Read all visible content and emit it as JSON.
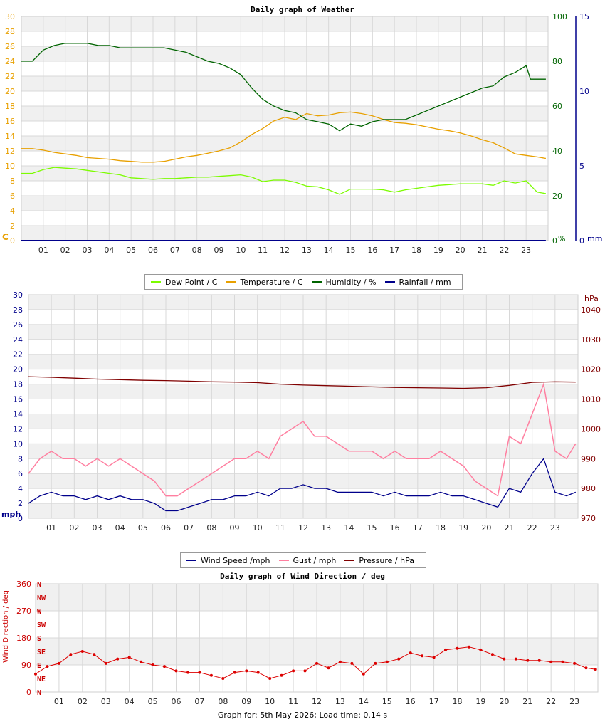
{
  "footer_text": "Graph for: 5th May 2026; Load time: 0.14 s",
  "chart_data": [
    {
      "type": "line",
      "title": "Daily graph of Weather",
      "x_ticks": [
        "01",
        "02",
        "03",
        "04",
        "05",
        "06",
        "07",
        "08",
        "09",
        "10",
        "11",
        "12",
        "13",
        "14",
        "15",
        "16",
        "17",
        "18",
        "19",
        "20",
        "21",
        "22",
        "23"
      ],
      "x_range": [
        0,
        24
      ],
      "axes": {
        "left": {
          "unit": "C",
          "color": "#e8a000",
          "range": [
            0,
            30
          ],
          "ticks": [
            0,
            2,
            4,
            6,
            8,
            10,
            12,
            14,
            16,
            18,
            20,
            22,
            24,
            26,
            28,
            30
          ]
        },
        "right1": {
          "unit": "%",
          "color": "#006400",
          "range": [
            0,
            100
          ],
          "ticks": [
            0,
            20,
            40,
            60,
            80,
            100
          ]
        },
        "right2": {
          "unit": "mm",
          "color": "#00008b",
          "range": [
            0,
            15
          ],
          "ticks": [
            0,
            5,
            10,
            15
          ]
        }
      },
      "legend": [
        {
          "name": "Dew Point / C",
          "color": "#7cfc00"
        },
        {
          "name": "Temperature / C",
          "color": "#e8a000"
        },
        {
          "name": "Humidity / %",
          "color": "#006400"
        },
        {
          "name": "Rainfall / mm",
          "color": "#00008b"
        }
      ],
      "series": [
        {
          "name": "Dew Point / C",
          "axis": "left",
          "color": "#7cfc00",
          "x": [
            0,
            0.5,
            1,
            1.5,
            2,
            2.5,
            3,
            3.5,
            4,
            4.5,
            5,
            5.5,
            6,
            6.5,
            7,
            7.5,
            8,
            8.5,
            9,
            9.5,
            10,
            10.5,
            11,
            11.5,
            12,
            12.5,
            13,
            13.5,
            14,
            14.5,
            15,
            15.5,
            16,
            16.5,
            17,
            17.5,
            18,
            18.5,
            19,
            19.5,
            20,
            20.5,
            21,
            21.5,
            22,
            22.5,
            23,
            23.5,
            23.9
          ],
          "values": [
            9.0,
            9.0,
            9.5,
            9.8,
            9.7,
            9.6,
            9.4,
            9.2,
            9.0,
            8.8,
            8.4,
            8.3,
            8.2,
            8.3,
            8.3,
            8.4,
            8.5,
            8.5,
            8.6,
            8.7,
            8.8,
            8.5,
            7.9,
            8.1,
            8.1,
            7.8,
            7.3,
            7.2,
            6.8,
            6.2,
            6.9,
            6.9,
            6.9,
            6.8,
            6.5,
            6.8,
            7.0,
            7.2,
            7.4,
            7.5,
            7.6,
            7.6,
            7.6,
            7.4,
            8.0,
            7.7,
            8.0,
            6.5,
            6.3
          ]
        },
        {
          "name": "Temperature / C",
          "axis": "left",
          "color": "#e8a000",
          "x": [
            0,
            0.5,
            1,
            1.5,
            2,
            2.5,
            3,
            3.5,
            4,
            4.5,
            5,
            5.5,
            6,
            6.5,
            7,
            7.5,
            8,
            8.5,
            9,
            9.5,
            10,
            10.5,
            11,
            11.5,
            12,
            12.5,
            13,
            13.5,
            14,
            14.5,
            15,
            15.5,
            16,
            16.5,
            17,
            17.5,
            18,
            18.5,
            19,
            19.5,
            20,
            20.5,
            21,
            21.5,
            22,
            22.5,
            23,
            23.5,
            23.9
          ],
          "values": [
            12.3,
            12.3,
            12.1,
            11.8,
            11.6,
            11.4,
            11.1,
            11.0,
            10.9,
            10.7,
            10.6,
            10.5,
            10.5,
            10.6,
            10.9,
            11.2,
            11.4,
            11.7,
            12.0,
            12.4,
            13.2,
            14.2,
            15.0,
            16.0,
            16.5,
            16.2,
            17.0,
            16.7,
            16.8,
            17.1,
            17.2,
            17.0,
            16.7,
            16.2,
            15.8,
            15.7,
            15.5,
            15.2,
            14.9,
            14.7,
            14.4,
            14.0,
            13.5,
            13.1,
            12.4,
            11.6,
            11.4,
            11.2,
            11.0
          ]
        },
        {
          "name": "Humidity / %",
          "axis": "right1",
          "color": "#006400",
          "x": [
            0,
            0.5,
            1,
            1.5,
            2,
            2.5,
            3,
            3.5,
            4,
            4.5,
            5,
            5.5,
            6,
            6.5,
            7,
            7.5,
            8,
            8.5,
            9,
            9.5,
            10,
            10.5,
            11,
            11.5,
            12,
            12.5,
            13,
            13.5,
            14,
            14.5,
            15,
            15.5,
            16,
            16.5,
            17,
            17.5,
            18,
            18.5,
            19,
            19.5,
            20,
            20.5,
            21,
            21.5,
            22,
            22.5,
            23,
            23.2,
            23.5,
            23.9
          ],
          "values": [
            80,
            80,
            85,
            87,
            88,
            88,
            88,
            87,
            87,
            86,
            86,
            86,
            86,
            86,
            85,
            84,
            82,
            80,
            79,
            77,
            74,
            68,
            63,
            60,
            58,
            57,
            54,
            53,
            52,
            49,
            52,
            51,
            53,
            54,
            54,
            54,
            56,
            58,
            60,
            62,
            64,
            66,
            68,
            69,
            73,
            75,
            78,
            72,
            72,
            72
          ]
        },
        {
          "name": "Rainfall / mm",
          "axis": "right2",
          "color": "#00008b",
          "x": [
            0,
            23.9
          ],
          "values": [
            0,
            0
          ]
        }
      ]
    },
    {
      "type": "line",
      "title": "",
      "x_ticks": [
        "01",
        "02",
        "03",
        "04",
        "05",
        "06",
        "07",
        "08",
        "09",
        "10",
        "11",
        "12",
        "13",
        "14",
        "15",
        "16",
        "17",
        "18",
        "19",
        "20",
        "21",
        "22",
        "23"
      ],
      "x_range": [
        0,
        24
      ],
      "axes": {
        "left": {
          "unit": "mph",
          "color": "#00008b",
          "range": [
            0,
            30
          ],
          "ticks": [
            0,
            2,
            4,
            6,
            8,
            10,
            12,
            14,
            16,
            18,
            20,
            22,
            24,
            26,
            28,
            30
          ]
        },
        "right": {
          "unit": "hPa",
          "color": "#800000",
          "range": [
            970,
            1045
          ],
          "ticks": [
            970,
            980,
            990,
            1000,
            1010,
            1020,
            1030,
            1040
          ]
        }
      },
      "legend": [
        {
          "name": "Wind Speed /mph",
          "color": "#00008b"
        },
        {
          "name": "Gust / mph",
          "color": "#ff7fa0"
        },
        {
          "name": "Pressure / hPa",
          "color": "#800000"
        }
      ],
      "series": [
        {
          "name": "Wind Speed /mph",
          "axis": "left",
          "color": "#00008b",
          "x": [
            0,
            0.5,
            1,
            1.5,
            2,
            2.5,
            3,
            3.5,
            4,
            4.5,
            5,
            5.5,
            6,
            6.5,
            7,
            7.5,
            8,
            8.5,
            9,
            9.5,
            10,
            10.5,
            11,
            11.5,
            12,
            12.5,
            13,
            13.5,
            14,
            14.5,
            15,
            15.5,
            16,
            16.5,
            17,
            17.5,
            18,
            18.5,
            19,
            19.5,
            20,
            20.5,
            21,
            21.5,
            22,
            22.5,
            23,
            23.5,
            23.9
          ],
          "values": [
            2.0,
            3.0,
            3.5,
            3.0,
            3.0,
            2.5,
            3.0,
            2.5,
            3.0,
            2.5,
            2.5,
            2.0,
            1.0,
            1.0,
            1.5,
            2.0,
            2.5,
            2.5,
            3.0,
            3.0,
            3.5,
            3.0,
            4.0,
            4.0,
            4.5,
            4.0,
            4.0,
            3.5,
            3.5,
            3.5,
            3.5,
            3.0,
            3.5,
            3.0,
            3.0,
            3.0,
            3.5,
            3.0,
            3.0,
            2.5,
            2.0,
            1.5,
            4.0,
            3.5,
            6.0,
            8.0,
            3.5,
            3.0,
            3.5
          ]
        },
        {
          "name": "Gust / mph",
          "axis": "left",
          "color": "#ff7fa0",
          "x": [
            0,
            0.5,
            1,
            1.5,
            2,
            2.5,
            3,
            3.5,
            4,
            4.5,
            5,
            5.5,
            6,
            6.5,
            7,
            7.5,
            8,
            8.5,
            9,
            9.5,
            10,
            10.5,
            11,
            11.5,
            12,
            12.5,
            13,
            13.5,
            14,
            14.5,
            15,
            15.5,
            16,
            16.5,
            17,
            17.5,
            18,
            18.5,
            19,
            19.5,
            20,
            20.5,
            21,
            21.5,
            22,
            22.5,
            23,
            23.5,
            23.9
          ],
          "values": [
            6,
            8,
            9,
            8,
            8,
            7,
            8,
            7,
            8,
            7,
            6,
            5,
            3,
            3,
            4,
            5,
            6,
            7,
            8,
            8,
            9,
            8,
            11,
            12,
            13,
            11,
            11,
            10,
            9,
            9,
            9,
            8,
            9,
            8,
            8,
            8,
            9,
            8,
            7,
            5,
            4,
            3,
            11,
            10,
            14,
            18,
            9,
            8,
            10
          ]
        },
        {
          "name": "Pressure / hPa",
          "axis": "right",
          "color": "#800000",
          "x": [
            0,
            1,
            2,
            3,
            4,
            5,
            6,
            7,
            8,
            9,
            10,
            11,
            12,
            13,
            14,
            15,
            16,
            17,
            18,
            19,
            20,
            21,
            22,
            23,
            23.9
          ],
          "values": [
            1017.5,
            1017.3,
            1017.0,
            1016.7,
            1016.5,
            1016.3,
            1016.2,
            1016.0,
            1015.8,
            1015.7,
            1015.5,
            1015.0,
            1014.7,
            1014.5,
            1014.3,
            1014.1,
            1013.9,
            1013.8,
            1013.7,
            1013.6,
            1013.8,
            1014.6,
            1015.6,
            1015.8,
            1015.7
          ]
        }
      ]
    },
    {
      "type": "scatter",
      "title": "Daily graph of Wind Direction / deg",
      "x_ticks": [
        "01",
        "02",
        "03",
        "04",
        "05",
        "06",
        "07",
        "08",
        "09",
        "10",
        "11",
        "12",
        "13",
        "14",
        "15",
        "16",
        "17",
        "18",
        "19",
        "20",
        "21",
        "22",
        "23"
      ],
      "x_range": [
        0,
        24
      ],
      "axes": {
        "left": {
          "unit": "Wind Direction / deg",
          "color": "#cc0000",
          "range": [
            0,
            360
          ],
          "ticks": [
            0,
            90,
            180,
            270,
            360
          ]
        },
        "compass": [
          "N",
          "NE",
          "E",
          "SE",
          "S",
          "SW",
          "W",
          "NW",
          "N"
        ]
      },
      "series": [
        {
          "name": "Wind Direction / deg",
          "color": "#dd0000",
          "x": [
            0,
            0.5,
            1,
            1.5,
            2,
            2.5,
            3,
            3.5,
            4,
            4.5,
            5,
            5.5,
            6,
            6.5,
            7,
            7.5,
            8,
            8.5,
            9,
            9.5,
            10,
            10.5,
            11,
            11.5,
            12,
            12.5,
            13,
            13.5,
            14,
            14.5,
            15,
            15.5,
            16,
            16.5,
            17,
            17.5,
            18,
            18.5,
            19,
            19.5,
            20,
            20.5,
            21,
            21.5,
            22,
            22.5,
            23,
            23.5,
            23.9
          ],
          "values": [
            60,
            85,
            95,
            125,
            135,
            125,
            95,
            110,
            115,
            100,
            90,
            85,
            70,
            65,
            65,
            55,
            45,
            65,
            70,
            65,
            45,
            55,
            70,
            70,
            95,
            80,
            100,
            95,
            60,
            95,
            100,
            110,
            130,
            120,
            115,
            140,
            145,
            150,
            140,
            125,
            110,
            110,
            105,
            105,
            100,
            100,
            95,
            80,
            75
          ]
        }
      ]
    }
  ]
}
